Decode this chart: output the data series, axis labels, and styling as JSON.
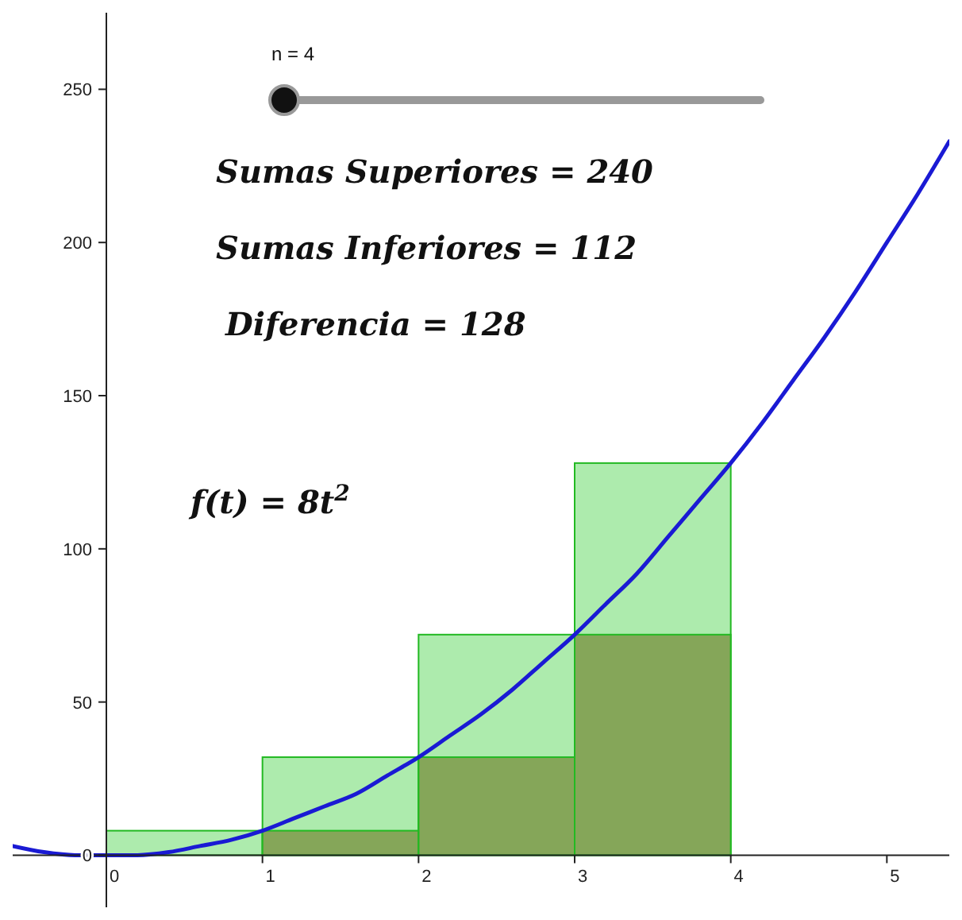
{
  "chart_data": {
    "type": "histogram",
    "bins": [
      0,
      1,
      2,
      3,
      4
    ],
    "series": [
      {
        "color": "#9fe89f",
        "values": [
          8,
          32,
          72,
          128
        ]
      },
      {
        "color": "#7e9a4a",
        "values": [
          0,
          8,
          32,
          72
        ]
      },
      {
        "type": "line",
        "color": "#1a1ad4",
        "x": [
          -0.6,
          -0.4,
          -0.2,
          0,
          0.2,
          0.4,
          0.6,
          0.8,
          1,
          1.2,
          1.4,
          1.6,
          1.8,
          2,
          2.2,
          2.4,
          2.6,
          2.8,
          3,
          3.2,
          3.4,
          3.6,
          3.8,
          4,
          4.2,
          4.4,
          4.6,
          4.8,
          5,
          5.2,
          5.4
        ],
        "values": [
          3,
          1,
          0,
          0,
          0,
          1,
          3,
          5,
          8,
          12,
          16,
          20,
          26,
          32,
          39,
          46,
          54,
          63,
          72,
          82,
          92,
          104,
          116,
          128,
          141,
          155,
          169,
          184,
          200,
          216,
          233
        ]
      }
    ],
    "xlim": [
      -0.6,
      5.4
    ],
    "ylim": [
      -17,
      275
    ],
    "xticks": [
      0,
      1,
      2,
      3,
      4,
      5
    ],
    "yticks": [
      0,
      50,
      100,
      150,
      200,
      250
    ],
    "grid": false,
    "marker": "none",
    "line_style": "solid",
    "annotations": [
      "n = 4",
      "Sumas Superiores = 240",
      "Sumas Inferiores = 112",
      "Diferencia = 128",
      "f(t) = 8t$^{2}$"
    ]
  }
}
